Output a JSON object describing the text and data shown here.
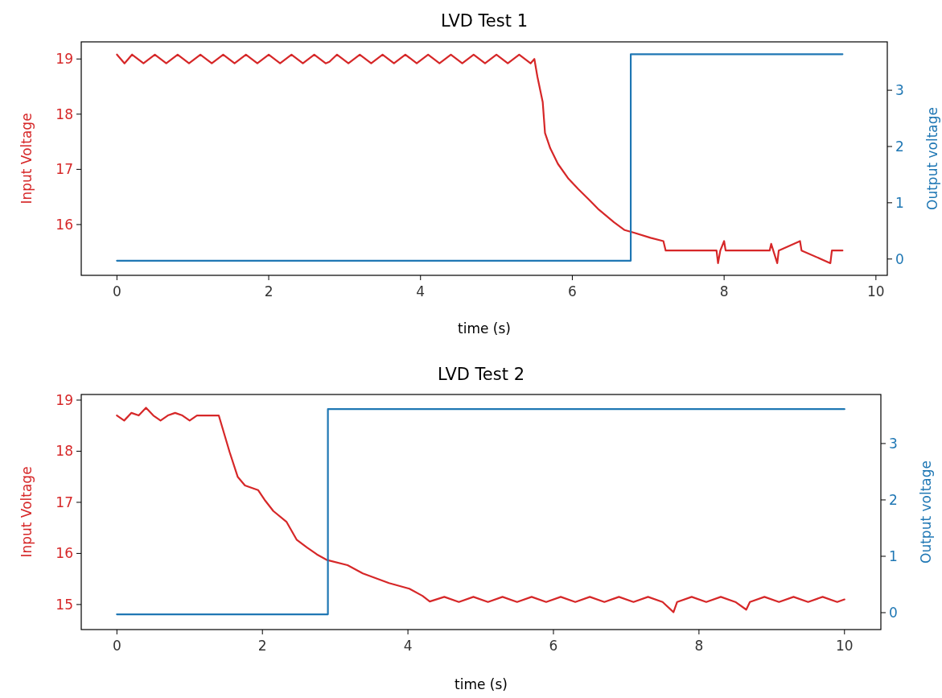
{
  "chart_data": [
    {
      "type": "line",
      "title": "LVD Test 1",
      "xlabel": "time (s)",
      "ylabel": "Input Voltage",
      "y2label": "Output voltage",
      "xlim": [
        -0.47,
        10.15
      ],
      "xticks": [
        0,
        2,
        4,
        6,
        8,
        10
      ],
      "ylim": [
        15.08,
        19.31
      ],
      "yticks": [
        16,
        17,
        18,
        19
      ],
      "y2lim": [
        -0.29,
        3.86
      ],
      "y2ticks": [
        0,
        1,
        2,
        3
      ],
      "series": [
        {
          "color": "#d62728",
          "x": [
            0,
            0.1,
            0.2,
            0.35,
            0.5,
            0.65,
            0.8,
            0.95,
            1.1,
            1.25,
            1.4,
            1.55,
            1.7,
            1.85,
            2.0,
            2.15,
            2.3,
            2.45,
            2.6,
            2.75,
            2.8,
            2.9,
            3.05,
            3.2,
            3.35,
            3.5,
            3.65,
            3.8,
            3.95,
            4.1,
            4.25,
            4.4,
            4.55,
            4.7,
            4.85,
            5.0,
            5.15,
            5.3,
            5.45,
            5.5,
            5.54,
            5.61,
            5.64,
            5.71,
            5.81,
            5.95,
            6.08,
            6.22,
            6.35,
            6.55,
            6.69,
            6.82,
            7.03,
            7.2,
            7.23,
            7.9,
            7.92,
            7.95,
            8.0,
            8.02,
            8.6,
            8.62,
            8.7,
            8.72,
            9.0,
            9.02,
            9.4,
            9.42,
            9.56
          ],
          "values": [
            19.08,
            18.92,
            19.08,
            18.92,
            19.08,
            18.92,
            19.08,
            18.92,
            19.08,
            18.92,
            19.08,
            18.92,
            19.08,
            18.92,
            19.08,
            18.92,
            19.08,
            18.92,
            19.08,
            18.92,
            18.95,
            19.08,
            18.92,
            19.08,
            18.92,
            19.08,
            18.92,
            19.08,
            18.92,
            19.08,
            18.92,
            19.08,
            18.92,
            19.08,
            18.92,
            19.08,
            18.92,
            19.08,
            18.92,
            19.0,
            18.68,
            18.22,
            17.66,
            17.38,
            17.1,
            16.83,
            16.64,
            16.45,
            16.27,
            16.04,
            15.9,
            15.85,
            15.76,
            15.7,
            15.53,
            15.53,
            15.3,
            15.53,
            15.7,
            15.53,
            15.53,
            15.65,
            15.3,
            15.53,
            15.7,
            15.53,
            15.3,
            15.53,
            15.53
          ]
        },
        {
          "color": "#1f77b4",
          "axis": "y2",
          "x": [
            0,
            6.77,
            6.77,
            9.56
          ],
          "values": [
            -0.03,
            -0.03,
            3.64,
            3.64
          ]
        }
      ]
    },
    {
      "type": "line",
      "title": "LVD Test 2",
      "xlabel": "time (s)",
      "ylabel": "Input Voltage",
      "y2label": "Output voltage",
      "xlim": [
        -0.49,
        10.5
      ],
      "xticks": [
        0,
        2,
        4,
        6,
        8,
        10
      ],
      "ylim": [
        14.51,
        19.11
      ],
      "yticks": [
        15,
        16,
        17,
        18,
        19
      ],
      "y2lim": [
        -0.3,
        3.87
      ],
      "y2ticks": [
        0,
        1,
        2,
        3
      ],
      "series": [
        {
          "color": "#d62728",
          "x": [
            0,
            0.1,
            0.2,
            0.3,
            0.4,
            0.5,
            0.6,
            0.7,
            0.8,
            0.9,
            1.0,
            1.1,
            1.2,
            1.3,
            1.4,
            1.55,
            1.66,
            1.76,
            1.94,
            2.04,
            2.15,
            2.33,
            2.47,
            2.61,
            2.75,
            2.89,
            3.17,
            3.38,
            3.74,
            4.02,
            4.2,
            4.3,
            4.5,
            4.7,
            4.9,
            5.1,
            5.3,
            5.5,
            5.7,
            5.9,
            6.1,
            6.3,
            6.5,
            6.7,
            6.9,
            7.1,
            7.3,
            7.5,
            7.65,
            7.7,
            7.9,
            8.1,
            8.3,
            8.5,
            8.65,
            8.7,
            8.9,
            9.1,
            9.3,
            9.5,
            9.7,
            9.9,
            10
          ],
          "values": [
            18.7,
            18.6,
            18.75,
            18.7,
            18.85,
            18.7,
            18.6,
            18.7,
            18.75,
            18.7,
            18.6,
            18.7,
            18.7,
            18.7,
            18.7,
            17.98,
            17.5,
            17.33,
            17.24,
            17.03,
            16.83,
            16.62,
            16.27,
            16.12,
            15.98,
            15.87,
            15.77,
            15.61,
            15.42,
            15.31,
            15.17,
            15.06,
            15.15,
            15.05,
            15.15,
            15.05,
            15.15,
            15.05,
            15.15,
            15.05,
            15.15,
            15.05,
            15.15,
            15.05,
            15.15,
            15.05,
            15.15,
            15.05,
            14.85,
            15.05,
            15.15,
            15.05,
            15.15,
            15.05,
            14.9,
            15.05,
            15.15,
            15.05,
            15.15,
            15.05,
            15.15,
            15.05,
            15.1
          ]
        },
        {
          "color": "#1f77b4",
          "axis": "y2",
          "x": [
            0,
            2.9,
            2.9,
            10
          ],
          "values": [
            -0.03,
            -0.03,
            3.61,
            3.61
          ]
        }
      ]
    }
  ]
}
